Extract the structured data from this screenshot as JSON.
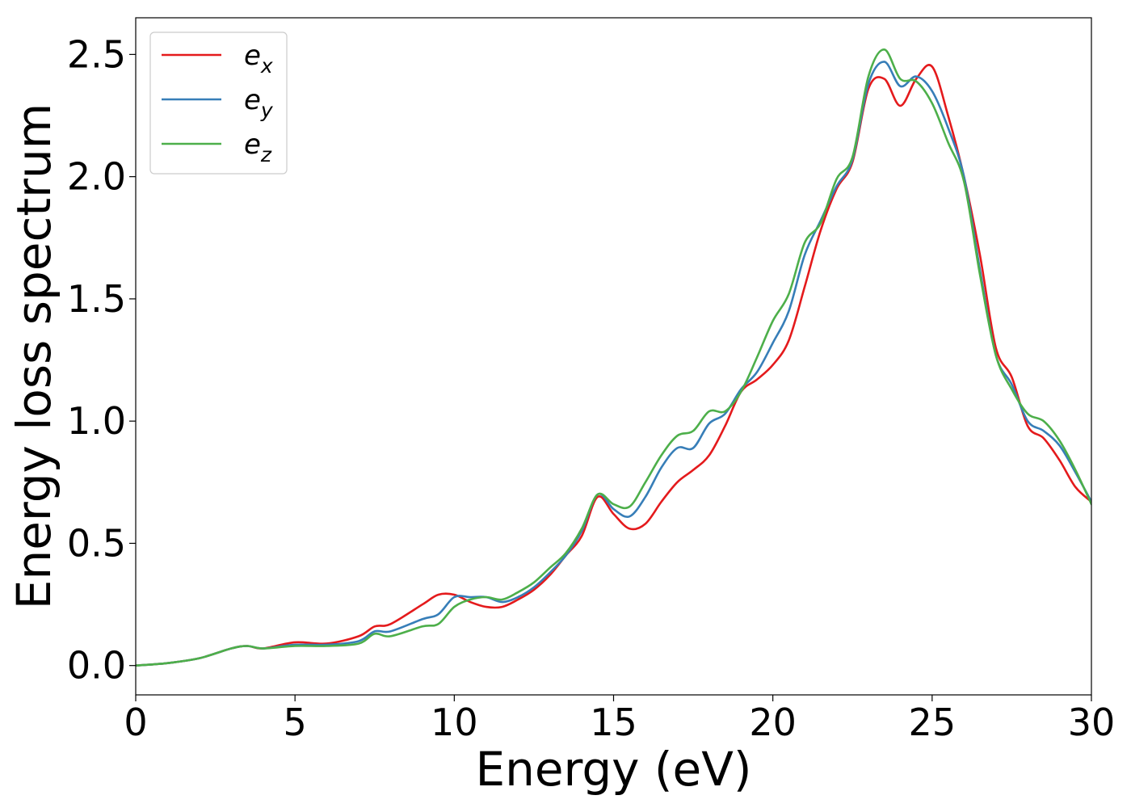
{
  "chart_data": {
    "type": "line",
    "title": "",
    "xlabel": "Energy (eV)",
    "ylabel": "Energy loss spectrum",
    "xlim": [
      0,
      30
    ],
    "ylim": [
      -0.12,
      2.65
    ],
    "xticks": [
      0,
      5,
      10,
      15,
      20,
      25,
      30
    ],
    "yticks": [
      0.0,
      0.5,
      1.0,
      1.5,
      2.0,
      2.5
    ],
    "xtick_labels": [
      "0",
      "5",
      "10",
      "15",
      "20",
      "25",
      "30"
    ],
    "ytick_labels": [
      "0.0",
      "0.5",
      "1.0",
      "1.5",
      "2.0",
      "2.5"
    ],
    "grid": false,
    "legend_position": "top-left",
    "series": [
      {
        "name": "e_x",
        "label_base": "e",
        "label_sub": "x",
        "color": "#e41a1c",
        "x": [
          0,
          1,
          2,
          3,
          3.5,
          4,
          5,
          6,
          7,
          7.5,
          8,
          9,
          9.5,
          10,
          10.5,
          11,
          11.5,
          12,
          12.5,
          13,
          13.5,
          14,
          14.5,
          15,
          15.5,
          16,
          16.5,
          17,
          17.5,
          18,
          18.5,
          19,
          19.5,
          20,
          20.5,
          21,
          21.5,
          22,
          22.5,
          23,
          23.5,
          24,
          24.5,
          25,
          25.5,
          26,
          26.5,
          27,
          27.5,
          28,
          28.5,
          29,
          29.5,
          30
        ],
        "y": [
          0.0,
          0.01,
          0.03,
          0.07,
          0.08,
          0.07,
          0.095,
          0.09,
          0.12,
          0.16,
          0.17,
          0.25,
          0.29,
          0.29,
          0.26,
          0.24,
          0.24,
          0.27,
          0.31,
          0.37,
          0.45,
          0.53,
          0.69,
          0.62,
          0.56,
          0.58,
          0.67,
          0.75,
          0.8,
          0.86,
          0.98,
          1.12,
          1.17,
          1.23,
          1.33,
          1.55,
          1.78,
          1.95,
          2.06,
          2.36,
          2.4,
          2.29,
          2.4,
          2.45,
          2.25,
          2.0,
          1.68,
          1.3,
          1.18,
          0.98,
          0.93,
          0.84,
          0.73,
          0.67
        ]
      },
      {
        "name": "e_y",
        "label_base": "e",
        "label_sub": "y",
        "color": "#377eb8",
        "x": [
          0,
          1,
          2,
          3,
          3.5,
          4,
          5,
          6,
          7,
          7.5,
          8,
          9,
          9.5,
          10,
          10.5,
          11,
          11.5,
          12,
          12.5,
          13,
          13.5,
          14,
          14.5,
          15,
          15.5,
          16,
          16.5,
          17,
          17.5,
          18,
          18.5,
          19,
          19.5,
          20,
          20.5,
          21,
          21.5,
          22,
          22.5,
          23,
          23.5,
          24,
          24.5,
          25,
          25.5,
          26,
          26.5,
          27,
          27.5,
          28,
          28.5,
          29,
          29.5,
          30
        ],
        "y": [
          0.0,
          0.01,
          0.03,
          0.07,
          0.08,
          0.07,
          0.085,
          0.085,
          0.1,
          0.14,
          0.14,
          0.19,
          0.21,
          0.28,
          0.28,
          0.28,
          0.26,
          0.28,
          0.32,
          0.38,
          0.45,
          0.55,
          0.7,
          0.64,
          0.61,
          0.69,
          0.81,
          0.89,
          0.89,
          0.99,
          1.03,
          1.13,
          1.2,
          1.32,
          1.45,
          1.68,
          1.82,
          1.96,
          2.07,
          2.38,
          2.47,
          2.37,
          2.41,
          2.35,
          2.2,
          2.0,
          1.62,
          1.27,
          1.15,
          1.0,
          0.96,
          0.9,
          0.79,
          0.67
        ]
      },
      {
        "name": "e_z",
        "label_base": "e",
        "label_sub": "z",
        "color": "#4daf4a",
        "x": [
          0,
          1,
          2,
          3,
          3.5,
          4,
          5,
          6,
          7,
          7.5,
          8,
          9,
          9.5,
          10,
          10.5,
          11,
          11.5,
          12,
          12.5,
          13,
          13.5,
          14,
          14.5,
          15,
          15.5,
          16,
          16.5,
          17,
          17.5,
          18,
          18.5,
          19,
          19.5,
          20,
          20.5,
          21,
          21.5,
          22,
          22.5,
          23,
          23.5,
          24,
          24.5,
          25,
          25.5,
          26,
          26.5,
          27,
          27.5,
          28,
          28.5,
          29,
          29.5,
          30
        ],
        "y": [
          0.0,
          0.01,
          0.03,
          0.07,
          0.08,
          0.07,
          0.08,
          0.08,
          0.09,
          0.13,
          0.12,
          0.16,
          0.17,
          0.24,
          0.27,
          0.28,
          0.27,
          0.3,
          0.34,
          0.4,
          0.46,
          0.56,
          0.7,
          0.66,
          0.65,
          0.75,
          0.86,
          0.94,
          0.96,
          1.04,
          1.04,
          1.12,
          1.26,
          1.41,
          1.52,
          1.73,
          1.81,
          1.99,
          2.08,
          2.41,
          2.52,
          2.4,
          2.39,
          2.3,
          2.14,
          1.98,
          1.6,
          1.27,
          1.13,
          1.03,
          1.0,
          0.92,
          0.8,
          0.66
        ]
      }
    ]
  }
}
